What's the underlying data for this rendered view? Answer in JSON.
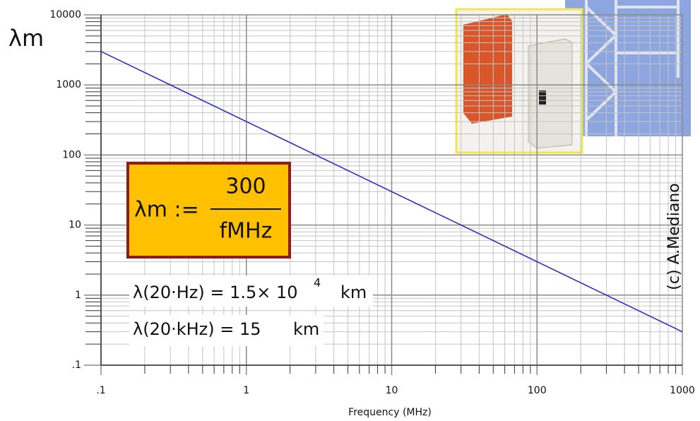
{
  "chart_data": {
    "type": "line",
    "log_x": true,
    "log_y": true,
    "grid": true,
    "y_label": "λm",
    "x_label": "Frequency (MHz)",
    "x": [
      0.1,
      1,
      10,
      100,
      1000
    ],
    "series": [
      {
        "color": "#2424c8",
        "values": [
          3000,
          300,
          30,
          3,
          0.3
        ]
      }
    ],
    "xlim": [
      0.1,
      1000
    ],
    "ylim": [
      0.1,
      10000
    ],
    "xticks": [
      {
        "value": 0.1,
        "label": ".1"
      },
      1,
      10,
      100,
      1000
    ],
    "yticks": [
      {
        "value": 0.1,
        "label": ".1"
      },
      1,
      10,
      100,
      1000,
      10000
    ],
    "formula": {
      "lhs": "λm :=",
      "numerator": "300",
      "denominator": "fMHz"
    },
    "annotations": [
      {
        "text": "λ(20·Hz) = 1.5× 10",
        "superscript": "4",
        "unit": "km"
      },
      {
        "text": "λ(20·kHz) = 15",
        "unit": "km"
      }
    ],
    "credit": "(c) A.Mediano"
  }
}
